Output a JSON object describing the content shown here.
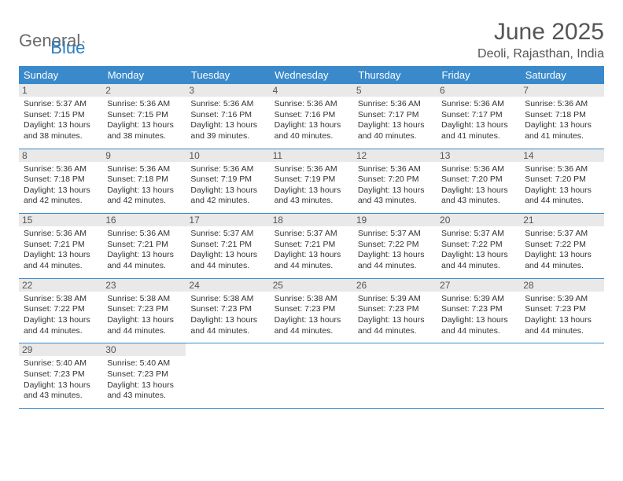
{
  "logo": {
    "text_a": "General",
    "text_b": "Blue"
  },
  "title": "June 2025",
  "location": "Deoli, Rajasthan, India",
  "colors": {
    "header_bg": "#3a8acb",
    "header_fg": "#ffffff",
    "daynum_bg": "#e9e9e9",
    "border": "#3a8acb",
    "logo_gray": "#6b6b6b",
    "logo_blue": "#2f7ec0"
  },
  "day_names": [
    "Sunday",
    "Monday",
    "Tuesday",
    "Wednesday",
    "Thursday",
    "Friday",
    "Saturday"
  ],
  "weeks": [
    [
      {
        "n": "1",
        "sr": "5:37 AM",
        "ss": "7:15 PM",
        "dl": "13 hours and 38 minutes."
      },
      {
        "n": "2",
        "sr": "5:36 AM",
        "ss": "7:15 PM",
        "dl": "13 hours and 38 minutes."
      },
      {
        "n": "3",
        "sr": "5:36 AM",
        "ss": "7:16 PM",
        "dl": "13 hours and 39 minutes."
      },
      {
        "n": "4",
        "sr": "5:36 AM",
        "ss": "7:16 PM",
        "dl": "13 hours and 40 minutes."
      },
      {
        "n": "5",
        "sr": "5:36 AM",
        "ss": "7:17 PM",
        "dl": "13 hours and 40 minutes."
      },
      {
        "n": "6",
        "sr": "5:36 AM",
        "ss": "7:17 PM",
        "dl": "13 hours and 41 minutes."
      },
      {
        "n": "7",
        "sr": "5:36 AM",
        "ss": "7:18 PM",
        "dl": "13 hours and 41 minutes."
      }
    ],
    [
      {
        "n": "8",
        "sr": "5:36 AM",
        "ss": "7:18 PM",
        "dl": "13 hours and 42 minutes."
      },
      {
        "n": "9",
        "sr": "5:36 AM",
        "ss": "7:18 PM",
        "dl": "13 hours and 42 minutes."
      },
      {
        "n": "10",
        "sr": "5:36 AM",
        "ss": "7:19 PM",
        "dl": "13 hours and 42 minutes."
      },
      {
        "n": "11",
        "sr": "5:36 AM",
        "ss": "7:19 PM",
        "dl": "13 hours and 43 minutes."
      },
      {
        "n": "12",
        "sr": "5:36 AM",
        "ss": "7:20 PM",
        "dl": "13 hours and 43 minutes."
      },
      {
        "n": "13",
        "sr": "5:36 AM",
        "ss": "7:20 PM",
        "dl": "13 hours and 43 minutes."
      },
      {
        "n": "14",
        "sr": "5:36 AM",
        "ss": "7:20 PM",
        "dl": "13 hours and 44 minutes."
      }
    ],
    [
      {
        "n": "15",
        "sr": "5:36 AM",
        "ss": "7:21 PM",
        "dl": "13 hours and 44 minutes."
      },
      {
        "n": "16",
        "sr": "5:36 AM",
        "ss": "7:21 PM",
        "dl": "13 hours and 44 minutes."
      },
      {
        "n": "17",
        "sr": "5:37 AM",
        "ss": "7:21 PM",
        "dl": "13 hours and 44 minutes."
      },
      {
        "n": "18",
        "sr": "5:37 AM",
        "ss": "7:21 PM",
        "dl": "13 hours and 44 minutes."
      },
      {
        "n": "19",
        "sr": "5:37 AM",
        "ss": "7:22 PM",
        "dl": "13 hours and 44 minutes."
      },
      {
        "n": "20",
        "sr": "5:37 AM",
        "ss": "7:22 PM",
        "dl": "13 hours and 44 minutes."
      },
      {
        "n": "21",
        "sr": "5:37 AM",
        "ss": "7:22 PM",
        "dl": "13 hours and 44 minutes."
      }
    ],
    [
      {
        "n": "22",
        "sr": "5:38 AM",
        "ss": "7:22 PM",
        "dl": "13 hours and 44 minutes."
      },
      {
        "n": "23",
        "sr": "5:38 AM",
        "ss": "7:23 PM",
        "dl": "13 hours and 44 minutes."
      },
      {
        "n": "24",
        "sr": "5:38 AM",
        "ss": "7:23 PM",
        "dl": "13 hours and 44 minutes."
      },
      {
        "n": "25",
        "sr": "5:38 AM",
        "ss": "7:23 PM",
        "dl": "13 hours and 44 minutes."
      },
      {
        "n": "26",
        "sr": "5:39 AM",
        "ss": "7:23 PM",
        "dl": "13 hours and 44 minutes."
      },
      {
        "n": "27",
        "sr": "5:39 AM",
        "ss": "7:23 PM",
        "dl": "13 hours and 44 minutes."
      },
      {
        "n": "28",
        "sr": "5:39 AM",
        "ss": "7:23 PM",
        "dl": "13 hours and 44 minutes."
      }
    ],
    [
      {
        "n": "29",
        "sr": "5:40 AM",
        "ss": "7:23 PM",
        "dl": "13 hours and 43 minutes."
      },
      {
        "n": "30",
        "sr": "5:40 AM",
        "ss": "7:23 PM",
        "dl": "13 hours and 43 minutes."
      },
      null,
      null,
      null,
      null,
      null
    ]
  ],
  "labels": {
    "sunrise": "Sunrise: ",
    "sunset": "Sunset: ",
    "daylight": "Daylight: "
  }
}
